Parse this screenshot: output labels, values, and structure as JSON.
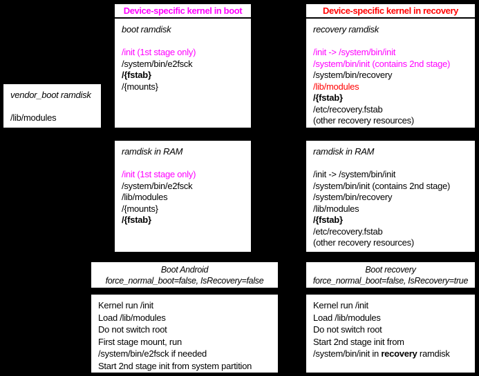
{
  "colors": {
    "background": "#000000",
    "box_background": "#ffffff",
    "text": "#000000",
    "magenta": "#ff00ff",
    "red": "#ff0000"
  },
  "vendor_boot_box": {
    "title": "vendor_boot ramdisk",
    "lines": [
      {
        "text": "/lib/modules"
      }
    ]
  },
  "boot_column": {
    "header": "Device-specific kernel in boot",
    "ramdisk_box": {
      "title": "boot ramdisk",
      "lines": [
        {
          "text": "/init (1st stage only)",
          "style": "magenta"
        },
        {
          "text": "/system/bin/e2fsck"
        },
        {
          "text": "/{fstab}",
          "style": "bold"
        },
        {
          "text": "/{mounts}"
        }
      ]
    },
    "ram_box": {
      "title": "ramdisk in RAM",
      "lines": [
        {
          "text": "/init (1st stage only)",
          "style": "magenta"
        },
        {
          "text": "/system/bin/e2fsck"
        },
        {
          "text": "/lib/modules"
        },
        {
          "text": "/{mounts}"
        },
        {
          "text": "/{fstab}",
          "style": "bold"
        }
      ]
    },
    "boot_box": {
      "line1": "Boot Android",
      "line2": "force_normal_boot=false, IsRecovery=false"
    },
    "kernel_box": {
      "lines": [
        {
          "text": "Kernel run /init"
        },
        {
          "text": "Load /lib/modules"
        },
        {
          "text": "Do not switch root"
        },
        {
          "text": "First stage mount, run"
        },
        {
          "text": "/system/bin/e2fsck if needed"
        },
        {
          "text": "Start 2nd stage init from system partition"
        }
      ]
    }
  },
  "recovery_column": {
    "header": "Device-specific kernel in recovery",
    "ramdisk_box": {
      "title": "recovery ramdisk",
      "lines": [
        {
          "text": "/init -> /system/bin/init",
          "style": "magenta"
        },
        {
          "text": "/system/bin/init (contains 2nd stage)",
          "style": "magenta"
        },
        {
          "text": "/system/bin/recovery"
        },
        {
          "text": "/lib/modules",
          "style": "red"
        },
        {
          "text": "/{fstab}",
          "style": "bold"
        },
        {
          "text": "/etc/recovery.fstab"
        },
        {
          "text": "(other recovery resources)"
        }
      ]
    },
    "ram_box": {
      "title": "ramdisk in RAM",
      "lines": [
        {
          "text": "/init -> /system/bin/init"
        },
        {
          "text": "/system/bin/init (contains 2nd stage)"
        },
        {
          "text": "/system/bin/recovery"
        },
        {
          "text": "/lib/modules"
        },
        {
          "text": "/{fstab}",
          "style": "bold"
        },
        {
          "text": "/etc/recovery.fstab"
        },
        {
          "text": "(other recovery resources)"
        }
      ]
    },
    "boot_box": {
      "line1": "Boot recovery",
      "line2": "force_normal_boot=false, IsRecovery=true"
    },
    "kernel_box": {
      "lines": [
        {
          "text": "Kernel run /init"
        },
        {
          "text": "Load /lib/modules"
        },
        {
          "text": "Do not switch root"
        },
        {
          "text": "Start 2nd stage init from"
        },
        {
          "segments": [
            {
              "text": "/system/bin/init in "
            },
            {
              "text": "recovery",
              "style": "bold"
            },
            {
              "text": " ramdisk"
            }
          ]
        }
      ]
    }
  }
}
